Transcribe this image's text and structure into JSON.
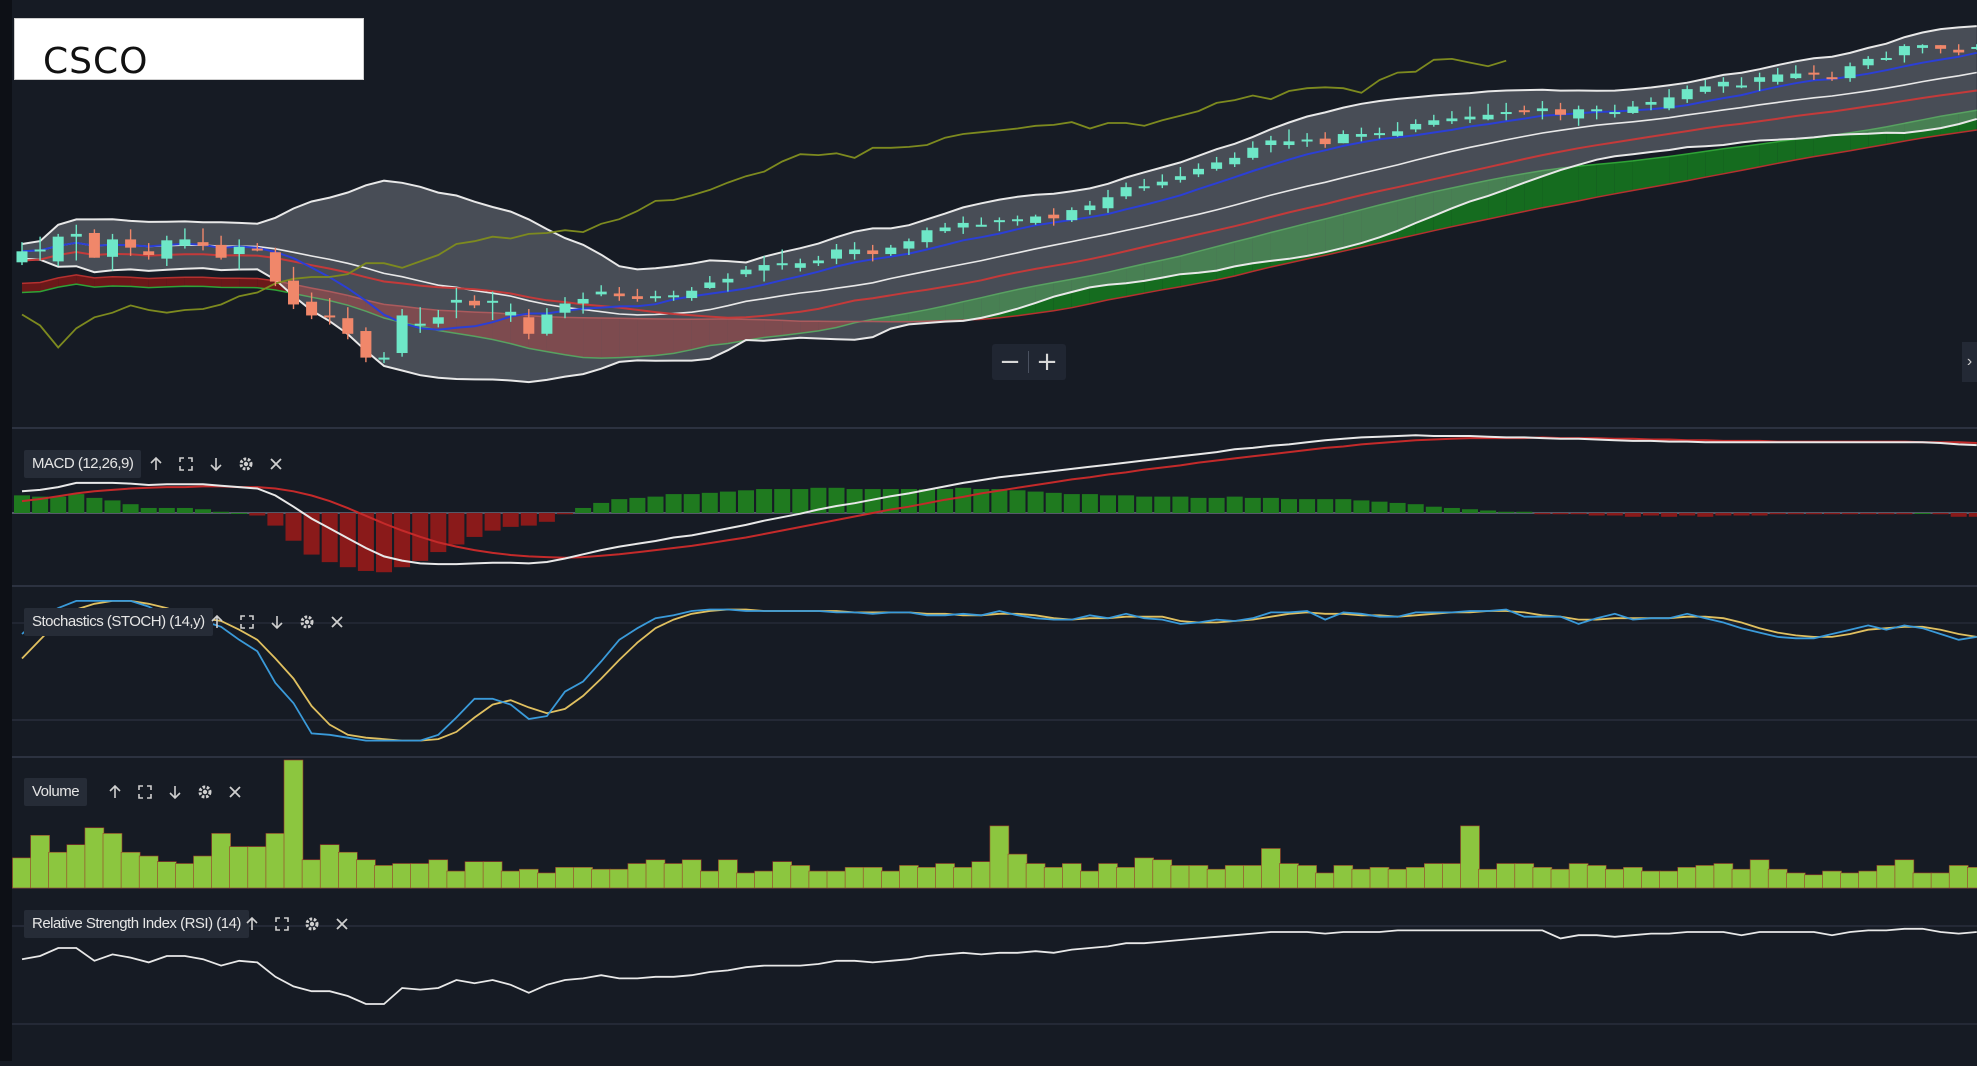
{
  "ticker": "CSCO",
  "zoom": {
    "minus_label": "−",
    "plus_label": "+"
  },
  "panels": {
    "macd": {
      "label": "MACD (12,26,9)"
    },
    "stoch": {
      "label": "Stochastics (STOCH) (14,y)"
    },
    "volume": {
      "label": "Volume"
    },
    "rsi": {
      "label": "Relative Strength Index (RSI) (14)"
    }
  },
  "icons": {
    "move_up": "arrow-up-icon",
    "maximize": "maximize-icon",
    "move_down": "arrow-down-icon",
    "settings": "gear-icon",
    "close": "close-icon"
  },
  "colors": {
    "background": "#161b24",
    "bull_candle": "#6ee7c7",
    "bear_candle": "#f0876a",
    "bollinger_fill": "#9aa0a8",
    "bollinger_line": "#e8e8e8",
    "fast_ma": "#2b3fd6",
    "slow_ma": "#c43a3a",
    "lagging_line": "#7d8a1f",
    "cloud_bull": "#157a1e",
    "cloud_bear": "#7a1818",
    "macd_line": "#e8e8e8",
    "signal_line": "#c42a2a",
    "hist_pos": "#1f7a1f",
    "hist_neg": "#8a1a1a",
    "stoch_k": "#3a9ad9",
    "stoch_d": "#e0c060",
    "volume_bar": "#8cc63f",
    "rsi_line": "#e8e8e8"
  },
  "chart_data": [
    {
      "type": "candlestick",
      "name": "price",
      "note_scale": "relative price units, no axis printed",
      "open": [
        51.9,
        53.1,
        52.0,
        54.7,
        55.1,
        52.5,
        54.4,
        53.1,
        52.3,
        53.7,
        54.1,
        53.8,
        52.8,
        53.4,
        53.0,
        49.9,
        47.6,
        46.1,
        45.8,
        44.4,
        41.5,
        42.0,
        45.0,
        45.2,
        47.5,
        47.7,
        47.5,
        46.1,
        45.9,
        44.1,
        46.4,
        47.4,
        48.4,
        48.5,
        48.2,
        48.1,
        48.3,
        48.0,
        49.1,
        49.7,
        50.6,
        51.0,
        51.6,
        51.3,
        51.8,
        52.3,
        52.8,
        53.2,
        52.8,
        53.4,
        54.1,
        55.3,
        55.7,
        55.9,
        56.3,
        56.4,
        56.2,
        57.1,
        56.5,
        57.6,
        57.8,
        59.1,
        60.1,
        60.3,
        60.9,
        61.5,
        62.1,
        62.6,
        63.3,
        64.7,
        64.7,
        65.2,
        65.4,
        64.9,
        65.6,
        65.9,
        65.7,
        66.4,
        66.9,
        67.3,
        67.5,
        67.5,
        68.2,
        68.5,
        68.4,
        68.6,
        67.6,
        68.5,
        68.3,
        68.2,
        69.1,
        68.7,
        69.7,
        70.5,
        71.1,
        71.1,
        71.6,
        71.6,
        72.0,
        72.6,
        72.1,
        72.0,
        73.4,
        74.1,
        74.5,
        75.3,
        75.6,
        75.1,
        75.3
      ],
      "high": [
        54.1,
        54.7,
        55.0,
        56.0,
        55.5,
        55.0,
        55.5,
        54.0,
        54.8,
        55.6,
        55.6,
        54.8,
        54.4,
        54.0,
        53.5,
        51.4,
        48.6,
        48.0,
        47.0,
        44.8,
        42.1,
        46.8,
        47.0,
        46.7,
        49.1,
        48.3,
        48.7,
        47.4,
        46.8,
        46.9,
        48.1,
        48.6,
        49.4,
        49.2,
        49.0,
        48.8,
        48.8,
        49.2,
        50.4,
        50.7,
        51.5,
        52.6,
        53.3,
        52.3,
        52.6,
        53.9,
        54.1,
        53.8,
        53.8,
        54.5,
        55.7,
        56.2,
        56.9,
        56.8,
        56.8,
        57.0,
        57.1,
        57.8,
        57.9,
        58.6,
        59.8,
        60.6,
        61.0,
        61.5,
        62.3,
        62.7,
        63.4,
        63.9,
        65.1,
        65.7,
        66.4,
        66.0,
        66.1,
        66.3,
        66.6,
        66.6,
        67.2,
        67.5,
        68.0,
        68.4,
        68.9,
        69.2,
        69.3,
        69.0,
        69.5,
        69.3,
        69.0,
        69.0,
        69.1,
        69.5,
        69.9,
        70.8,
        71.2,
        71.8,
        72.1,
        72.1,
        72.6,
        73.1,
        73.4,
        73.4,
        72.7,
        73.7,
        74.4,
        74.9,
        75.7,
        75.7,
        75.6,
        75.7,
        75.7
      ],
      "low": [
        51.6,
        52.1,
        51.5,
        52.1,
        52.4,
        51.0,
        52.6,
        52.2,
        51.5,
        53.4,
        53.2,
        52.2,
        51.1,
        53.1,
        49.3,
        46.8,
        45.7,
        45.1,
        43.5,
        41.0,
        40.9,
        41.6,
        44.2,
        44.8,
        45.8,
        46.9,
        45.6,
        45.4,
        43.5,
        43.9,
        45.8,
        46.3,
        48.2,
        47.7,
        47.6,
        47.6,
        47.7,
        47.7,
        49.0,
        48.7,
        50.3,
        49.8,
        51.1,
        50.9,
        51.5,
        51.7,
        52.2,
        52.0,
        52.6,
        52.7,
        53.5,
        55.1,
        55.0,
        55.8,
        55.3,
        55.9,
        56.0,
        55.9,
        56.3,
        57.1,
        57.3,
        58.8,
        59.7,
        60.0,
        60.6,
        61.2,
        61.9,
        62.3,
        63.1,
        63.9,
        64.3,
        64.5,
        64.4,
        64.9,
        65.1,
        65.4,
        65.6,
        66.1,
        66.7,
        67.0,
        67.1,
        67.4,
        67.4,
        68.0,
        67.5,
        67.4,
        66.8,
        67.5,
        67.7,
        68.1,
        68.5,
        68.5,
        69.3,
        70.3,
        70.4,
        70.9,
        70.6,
        71.3,
        71.9,
        71.8,
        71.7,
        71.6,
        73.0,
        73.9,
        73.7,
        74.7,
        74.7,
        74.5,
        75.1
      ],
      "close": [
        53.1,
        53.3,
        54.7,
        55.0,
        52.4,
        54.4,
        53.5,
        52.7,
        54.3,
        54.4,
        53.7,
        52.4,
        53.6,
        53.3,
        49.8,
        47.3,
        46.1,
        45.9,
        44.1,
        41.5,
        41.5,
        46.1,
        45.2,
        45.9,
        47.8,
        47.2,
        47.7,
        46.5,
        44.1,
        46.2,
        47.4,
        47.9,
        48.7,
        48.2,
        47.9,
        48.2,
        48.3,
        48.8,
        49.7,
        50.1,
        51.1,
        51.6,
        51.8,
        51.8,
        52.1,
        53.3,
        53.3,
        52.8,
        53.5,
        54.2,
        55.4,
        55.7,
        56.2,
        56.0,
        56.5,
        56.6,
        56.9,
        56.7,
        57.6,
        58.1,
        59.0,
        60.1,
        60.2,
        60.7,
        61.3,
        62.1,
        62.8,
        63.3,
        64.4,
        65.2,
        65.1,
        65.3,
        64.8,
        65.9,
        65.9,
        66.0,
        66.2,
        67.0,
        67.4,
        67.6,
        67.8,
        68.0,
        68.3,
        68.4,
        68.7,
        68.0,
        68.6,
        68.6,
        68.3,
        68.9,
        69.4,
        69.9,
        70.8,
        71.1,
        71.6,
        71.2,
        72.1,
        72.4,
        72.5,
        72.4,
        71.9,
        73.3,
        74.1,
        74.2,
        75.5,
        75.6,
        75.2,
        74.8,
        75.4
      ]
    },
    {
      "type": "bar",
      "name": "Volume",
      "values": [
        16,
        28,
        19,
        23,
        32,
        29,
        19,
        17,
        14,
        13,
        17,
        29,
        22,
        22,
        29,
        68,
        15,
        23,
        19,
        15,
        12,
        13,
        13,
        15,
        9,
        14,
        14,
        9,
        10,
        8,
        11,
        11,
        10,
        10,
        13,
        15,
        13,
        15,
        9,
        15,
        8,
        9,
        14,
        12,
        9,
        9,
        11,
        11,
        9,
        12,
        11,
        13,
        11,
        14,
        33,
        18,
        13,
        11,
        13,
        9,
        13,
        11,
        16,
        15,
        12,
        12,
        10,
        12,
        12,
        21,
        13,
        12,
        8,
        12,
        10,
        11,
        10,
        11,
        13,
        13,
        33,
        10,
        13,
        13,
        11,
        10,
        13,
        12,
        10,
        11,
        9,
        9,
        11,
        12,
        13,
        10,
        15,
        10,
        8,
        7,
        9,
        8,
        9,
        12,
        15,
        8,
        8,
        12,
        11
      ]
    },
    {
      "type": "line",
      "name": "MACD (12,26,9)",
      "series": [
        {
          "values": [
            0.31,
            0.33,
            0.37,
            0.43,
            0.43,
            0.43,
            0.42,
            0.4,
            0.41,
            0.41,
            0.41,
            0.39,
            0.37,
            0.35,
            0.25,
            0.09,
            -0.08,
            -0.22,
            -0.36,
            -0.5,
            -0.62,
            -0.68,
            -0.72,
            -0.73,
            -0.73,
            -0.72,
            -0.71,
            -0.71,
            -0.72,
            -0.7,
            -0.65,
            -0.59,
            -0.53,
            -0.48,
            -0.44,
            -0.4,
            -0.35,
            -0.32,
            -0.27,
            -0.22,
            -0.17,
            -0.11,
            -0.06,
            -0.01,
            0.05,
            0.1,
            0.14,
            0.19,
            0.24,
            0.28,
            0.33,
            0.38,
            0.43,
            0.47,
            0.51,
            0.54,
            0.57,
            0.6,
            0.63,
            0.66,
            0.69,
            0.72,
            0.75,
            0.78,
            0.81,
            0.84,
            0.87,
            0.91,
            0.93,
            0.96,
            0.98,
            1.01,
            1.04,
            1.06,
            1.08,
            1.09,
            1.1,
            1.11,
            1.1,
            1.1,
            1.1,
            1.09,
            1.08,
            1.08,
            1.07,
            1.06,
            1.06,
            1.05,
            1.04,
            1.03,
            1.03,
            1.02,
            1.02,
            1.01,
            1.01,
            1.01,
            1.01,
            1.01,
            1.01,
            1.01,
            1.01,
            1.01,
            1.01,
            1.01,
            1.01,
            1.01,
            1.0,
            0.98,
            0.97
          ]
        },
        {
          "values": [
            0.17,
            0.2,
            0.24,
            0.28,
            0.31,
            0.33,
            0.35,
            0.36,
            0.37,
            0.37,
            0.38,
            0.38,
            0.37,
            0.37,
            0.35,
            0.31,
            0.25,
            0.17,
            0.07,
            -0.04,
            -0.15,
            -0.25,
            -0.34,
            -0.42,
            -0.48,
            -0.53,
            -0.57,
            -0.6,
            -0.62,
            -0.63,
            -0.64,
            -0.63,
            -0.61,
            -0.59,
            -0.56,
            -0.53,
            -0.5,
            -0.47,
            -0.43,
            -0.39,
            -0.35,
            -0.3,
            -0.25,
            -0.2,
            -0.15,
            -0.1,
            -0.05,
            0.0,
            0.05,
            0.09,
            0.14,
            0.19,
            0.23,
            0.28,
            0.32,
            0.36,
            0.4,
            0.44,
            0.48,
            0.51,
            0.55,
            0.58,
            0.62,
            0.65,
            0.68,
            0.72,
            0.75,
            0.78,
            0.81,
            0.84,
            0.87,
            0.9,
            0.93,
            0.95,
            0.98,
            1.0,
            1.02,
            1.04,
            1.05,
            1.06,
            1.07,
            1.07,
            1.07,
            1.07,
            1.08,
            1.07,
            1.07,
            1.07,
            1.06,
            1.06,
            1.05,
            1.05,
            1.04,
            1.04,
            1.03,
            1.03,
            1.03,
            1.02,
            1.02,
            1.02,
            1.02,
            1.02,
            1.02,
            1.02,
            1.02,
            1.01,
            1.01,
            1.01,
            1.0
          ]
        }
      ]
    },
    {
      "type": "line",
      "name": "Stochastics (STOCH) (14,y)",
      "series": [
        {
          "values": [
            75,
            86,
            93,
            98,
            98,
            98,
            98,
            94,
            87,
            87,
            84,
            80,
            71,
            63,
            41,
            27,
            6,
            5,
            3,
            1,
            1,
            1,
            1,
            5,
            17,
            30,
            30,
            26,
            16,
            18,
            35,
            42,
            56,
            71,
            79,
            86,
            88,
            91,
            92,
            92,
            91,
            91,
            91,
            91,
            91,
            90,
            90,
            89,
            90,
            90,
            88,
            88,
            89,
            88,
            91,
            88,
            86,
            85,
            85,
            88,
            86,
            89,
            86,
            85,
            82,
            83,
            85,
            84,
            86,
            90,
            90,
            91,
            85,
            90,
            89,
            87,
            87,
            90,
            90,
            90,
            91,
            91,
            92,
            87,
            87,
            87,
            82,
            86,
            89,
            85,
            86,
            86,
            89,
            86,
            83,
            79,
            76,
            73,
            72,
            72,
            75,
            78,
            81,
            78,
            81,
            79,
            75,
            71,
            73
          ]
        },
        {
          "values": [
            58,
            71,
            84,
            92,
            96,
            98,
            98,
            96,
            93,
            89,
            86,
            84,
            78,
            71,
            58,
            44,
            25,
            12,
            5,
            3,
            2,
            1,
            1,
            2,
            7,
            17,
            26,
            29,
            24,
            20,
            23,
            32,
            44,
            57,
            69,
            79,
            85,
            89,
            91,
            92,
            92,
            91,
            91,
            91,
            91,
            91,
            90,
            90,
            90,
            90,
            89,
            89,
            88,
            88,
            89,
            89,
            88,
            86,
            85,
            86,
            86,
            87,
            87,
            87,
            84,
            83,
            83,
            84,
            85,
            87,
            89,
            90,
            89,
            89,
            88,
            88,
            87,
            88,
            89,
            90,
            90,
            91,
            91,
            90,
            88,
            87,
            85,
            85,
            86,
            86,
            86,
            86,
            87,
            87,
            86,
            83,
            79,
            76,
            74,
            73,
            73,
            75,
            78,
            79,
            80,
            80,
            78,
            75,
            73
          ]
        }
      ]
    },
    {
      "type": "line",
      "name": "Relative Strength Index (RSI) (14)",
      "values": [
        63,
        65,
        70,
        70,
        62,
        66,
        64,
        61,
        65,
        65,
        63,
        59,
        62,
        61,
        52,
        46,
        43,
        43,
        40,
        35,
        35,
        45,
        44,
        45,
        50,
        48,
        50,
        47,
        42,
        47,
        50,
        51,
        53,
        51,
        51,
        52,
        52,
        53,
        55,
        56,
        58,
        59,
        59,
        59,
        60,
        62,
        62,
        61,
        62,
        63,
        65,
        66,
        67,
        66,
        67,
        67,
        68,
        67,
        69,
        70,
        71,
        73,
        73,
        74,
        75,
        76,
        77,
        78,
        79,
        80,
        80,
        80,
        79,
        80,
        80,
        80,
        81,
        81,
        81,
        81,
        81,
        81,
        81,
        81,
        81,
        76,
        78,
        78,
        77,
        78,
        79,
        79,
        80,
        80,
        80,
        78,
        80,
        80,
        80,
        80,
        78,
        80,
        81,
        81,
        82,
        82,
        80,
        79,
        80
      ]
    }
  ]
}
